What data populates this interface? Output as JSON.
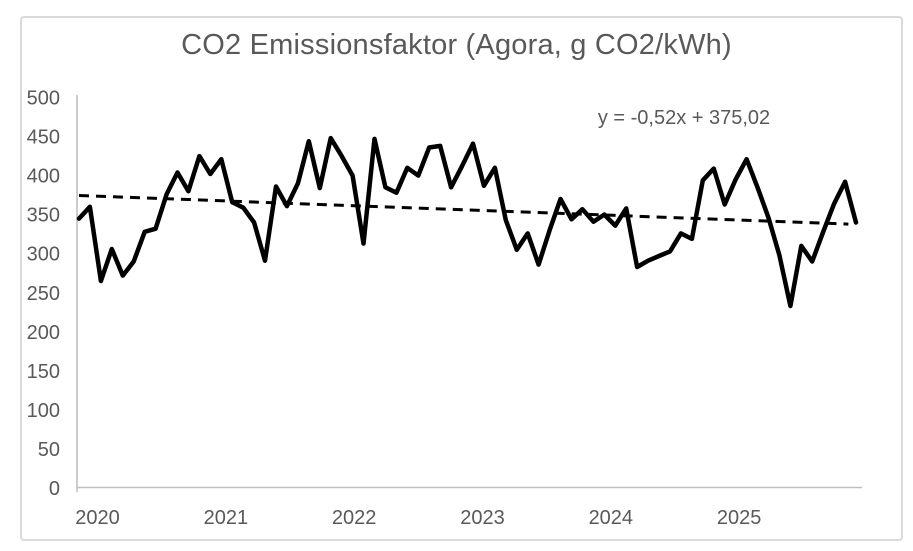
{
  "chart": {
    "title": "CO2 Emissionsfaktor (Agora, g CO2/kWh)",
    "trend_equation": "y = -0,52x + 375,02"
  },
  "chart_data": {
    "type": "line",
    "title": "CO2 Emissionsfaktor (Agora, g CO2/kWh)",
    "xlabel": "",
    "ylabel": "",
    "ylim": [
      0,
      500
    ],
    "y_ticks": [
      0,
      50,
      100,
      150,
      200,
      250,
      300,
      350,
      400,
      450,
      500
    ],
    "x_tick_labels": [
      "2020",
      "2021",
      "2022",
      "2023",
      "2024",
      "2025"
    ],
    "grid": false,
    "legend": "none",
    "categories": [
      "2020-01",
      "2020-02",
      "2020-03",
      "2020-04",
      "2020-05",
      "2020-06",
      "2020-07",
      "2020-08",
      "2020-09",
      "2020-10",
      "2020-11",
      "2020-12",
      "2021-01",
      "2021-02",
      "2021-03",
      "2021-04",
      "2021-05",
      "2021-06",
      "2021-07",
      "2021-08",
      "2021-09",
      "2021-10",
      "2021-11",
      "2021-12",
      "2022-01",
      "2022-02",
      "2022-03",
      "2022-04",
      "2022-05",
      "2022-06",
      "2022-07",
      "2022-08",
      "2022-09",
      "2022-10",
      "2022-11",
      "2022-12",
      "2023-01",
      "2023-02",
      "2023-03",
      "2023-04",
      "2023-05",
      "2023-06",
      "2023-07",
      "2023-08",
      "2023-09",
      "2023-10",
      "2023-11",
      "2023-12",
      "2024-01",
      "2024-02",
      "2024-03",
      "2024-04",
      "2024-05",
      "2024-06",
      "2024-07",
      "2024-08",
      "2024-09",
      "2024-10",
      "2024-11",
      "2024-12",
      "2025-01",
      "2025-02",
      "2025-03",
      "2025-04",
      "2025-05",
      "2025-06",
      "2025-07",
      "2025-08",
      "2025-09",
      "2025-10",
      "2025-11",
      "2025-12"
    ],
    "series": [
      {
        "name": "CO2 Emissionsfaktor (g CO2/kWh)",
        "values": [
          345,
          360,
          265,
          306,
          272,
          290,
          328,
          332,
          376,
          404,
          380,
          425,
          402,
          421,
          366,
          359,
          340,
          291,
          386,
          361,
          390,
          444,
          384,
          448,
          425,
          400,
          313,
          447,
          385,
          378,
          410,
          400,
          436,
          438,
          385,
          412,
          441,
          387,
          410,
          343,
          305,
          326,
          286,
          330,
          370,
          344,
          357,
          341,
          350,
          336,
          358,
          283,
          291,
          297,
          303,
          326,
          319,
          394,
          409,
          363,
          395,
          421,
          385,
          346,
          298,
          233,
          310,
          290,
          328,
          364,
          392,
          340
        ]
      }
    ],
    "trendline": {
      "equation_label": "y = -0,52x + 375,02",
      "slope": -0.52,
      "intercept": 375.02,
      "style": "dashed"
    },
    "colors": {
      "line": "#000000",
      "trendline": "#000000",
      "text": "#595959",
      "axis": "#bfbfbf",
      "frame_border": "#dadada",
      "background": "#ffffff"
    }
  }
}
